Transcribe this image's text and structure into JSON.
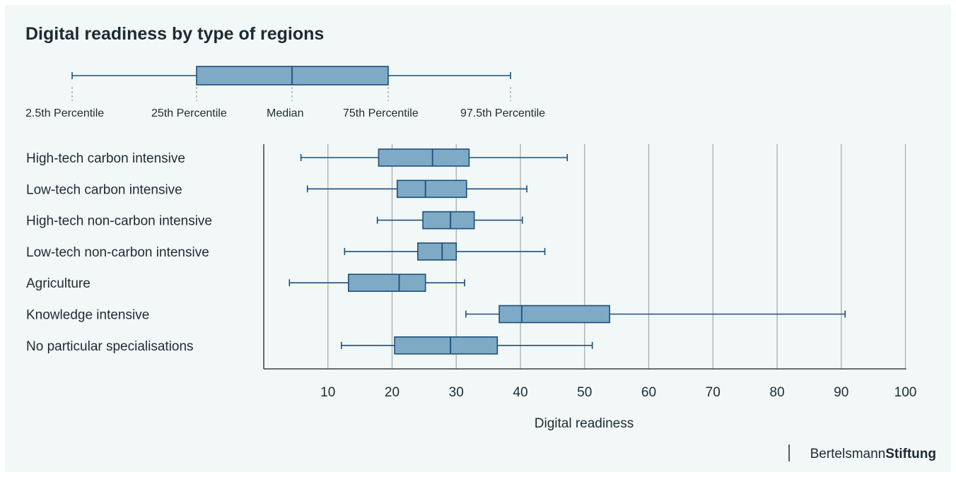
{
  "header": {
    "title": "Digital readiness by type of regions"
  },
  "legend": {
    "labels": [
      "2.5th Percentile",
      "25th Percentile",
      "Median",
      "75th Percentile",
      "97.5th Percentile"
    ]
  },
  "brand": {
    "light": "Bertelsmann",
    "bold": "Stiftung"
  },
  "colors": {
    "box_fill": "#7eaac6",
    "box_stroke": "#1d4f7c",
    "grid": "#a9aeb0",
    "axis": "#3a3f42",
    "background": "#f1f8f7"
  },
  "chart_data": {
    "type": "boxplot",
    "orientation": "horizontal",
    "xlabel": "Digital readiness",
    "xlim": [
      0,
      100
    ],
    "xticks": [
      10,
      20,
      30,
      40,
      50,
      60,
      70,
      80,
      90,
      100
    ],
    "grid": true,
    "categories": [
      "High-tech carbon intensive",
      "Low-tech carbon intensive",
      "High-tech non-carbon intensive",
      "Low-tech non-carbon intensive",
      "Agriculture",
      "Knowledge intensive",
      "No particular specialisations"
    ],
    "boxes": [
      {
        "p2_5": 5.8,
        "q1": 17.9,
        "median": 26.3,
        "q3": 32.0,
        "p97_5": 47.3
      },
      {
        "p2_5": 6.8,
        "q1": 20.8,
        "median": 25.2,
        "q3": 31.6,
        "p97_5": 41.0
      },
      {
        "p2_5": 17.7,
        "q1": 24.8,
        "median": 29.1,
        "q3": 32.8,
        "p97_5": 40.3
      },
      {
        "p2_5": 12.6,
        "q1": 24.0,
        "median": 27.8,
        "q3": 30.0,
        "p97_5": 43.8
      },
      {
        "p2_5": 4.0,
        "q1": 13.2,
        "median": 21.1,
        "q3": 25.2,
        "p97_5": 31.3
      },
      {
        "p2_5": 31.5,
        "q1": 36.7,
        "median": 40.2,
        "q3": 53.9,
        "p97_5": 90.6
      },
      {
        "p2_5": 12.1,
        "q1": 20.4,
        "median": 29.1,
        "q3": 36.4,
        "p97_5": 51.2
      }
    ]
  }
}
